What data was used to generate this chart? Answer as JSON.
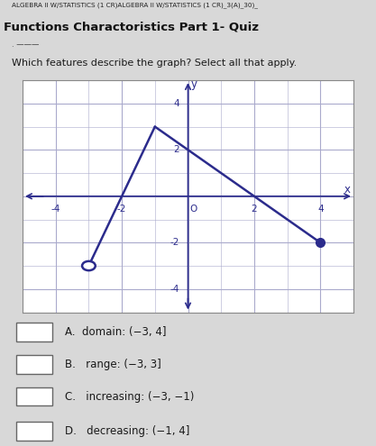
{
  "title_line1": "ALGEBRA II W/STATISTICS (1 CR)ALGEBRA II W/STATISTICS (1 CR)_3(A)_30)_",
  "title_line2": "Functions Charactoristics Part 1- Quiz",
  "question": "Which features describe the graph? Select all that apply.",
  "graph": {
    "xlim": [
      -5,
      5
    ],
    "ylim": [
      -5,
      5
    ],
    "xticks": [
      -4,
      -2,
      2,
      4
    ],
    "yticks": [
      -4,
      -2,
      2,
      4
    ],
    "xtick_labels": [
      "-4",
      "-2",
      "2",
      "4"
    ],
    "ytick_labels": [
      "-4",
      "-2",
      "2",
      "4"
    ],
    "open_points": [
      [
        -3,
        -3
      ]
    ],
    "closed_points": [
      [
        4,
        -2
      ]
    ],
    "peak_point": [
      -1,
      3
    ],
    "line_color": "#2b2b8c",
    "point_color": "#2b2b8c",
    "grid_color": "#aaaacc",
    "bg_color": "#ffffff"
  },
  "choices": [
    "A.  domain: (−3, 4]",
    "B.   range: (−3, 3]",
    "C.   increasing: (−3, −1)",
    "D.   decreasing: (−1, 4]"
  ],
  "page_bg": "#d8d8d8",
  "text_color": "#1a1a1a"
}
